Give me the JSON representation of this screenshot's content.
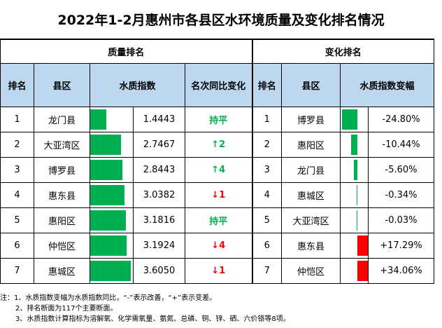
{
  "title": "2022年1-2月惠州市各县区水环境质量及变化排名情况",
  "groups": {
    "quality": "质量排名",
    "change": "变化排名"
  },
  "headers": {
    "rank": "排名",
    "county": "县区",
    "index": "水质指数",
    "yoy": "名次同比变化",
    "rank2": "排名",
    "county2": "县区",
    "change": "水质指数变幅"
  },
  "quality_rows": [
    {
      "rank": "1",
      "county": "龙门县",
      "index": "1.4443",
      "bar_fraction": 0.4,
      "yoy": "持平",
      "yoy_type": "flat"
    },
    {
      "rank": "2",
      "county": "大亚湾区",
      "index": "2.7467",
      "bar_fraction": 0.76,
      "yoy": "↑2",
      "yoy_type": "up"
    },
    {
      "rank": "3",
      "county": "博罗县",
      "index": "2.8443",
      "bar_fraction": 0.79,
      "yoy": "↑4",
      "yoy_type": "up"
    },
    {
      "rank": "4",
      "county": "惠东县",
      "index": "3.0382",
      "bar_fraction": 0.84,
      "yoy": "↓1",
      "yoy_type": "down"
    },
    {
      "rank": "5",
      "county": "惠阳区",
      "index": "3.1816",
      "bar_fraction": 0.88,
      "yoy": "持平",
      "yoy_type": "flat"
    },
    {
      "rank": "6",
      "county": "仲恺区",
      "index": "3.1924",
      "bar_fraction": 0.89,
      "yoy": "↓4",
      "yoy_type": "down"
    },
    {
      "rank": "7",
      "county": "惠城区",
      "index": "3.6050",
      "bar_fraction": 1.0,
      "yoy": "↓1",
      "yoy_type": "down"
    }
  ],
  "change_rows": [
    {
      "rank": "1",
      "county": "博罗县",
      "change": "-24.80%",
      "value": -24.8
    },
    {
      "rank": "2",
      "county": "惠阳区",
      "change": "-10.44%",
      "value": -10.44
    },
    {
      "rank": "3",
      "county": "龙门县",
      "change": "-5.60%",
      "value": -5.6
    },
    {
      "rank": "4",
      "county": "惠城区",
      "change": "-0.34%",
      "value": -0.34
    },
    {
      "rank": "5",
      "county": "大亚湾区",
      "change": "-0.03%",
      "value": -0.03
    },
    {
      "rank": "6",
      "county": "惠东县",
      "change": "+17.29%",
      "value": 17.29
    },
    {
      "rank": "7",
      "county": "仲恺区",
      "change": "+34.06%",
      "value": 34.06
    }
  ],
  "notes": [
    "注：1、水质指数变幅为水质指数同比，“-”表示改善，“+”表示变差。",
    "2、排名断面为117个主要断面。",
    "3、水质指数计算指标为溶解氧、化学需氧量、氨氮、总磷、铜、锌、硒、六价铬等8项。"
  ],
  "colors": {
    "header_bg": "#bdd7ee",
    "good": "#00b050",
    "bad": "#ff0000"
  }
}
